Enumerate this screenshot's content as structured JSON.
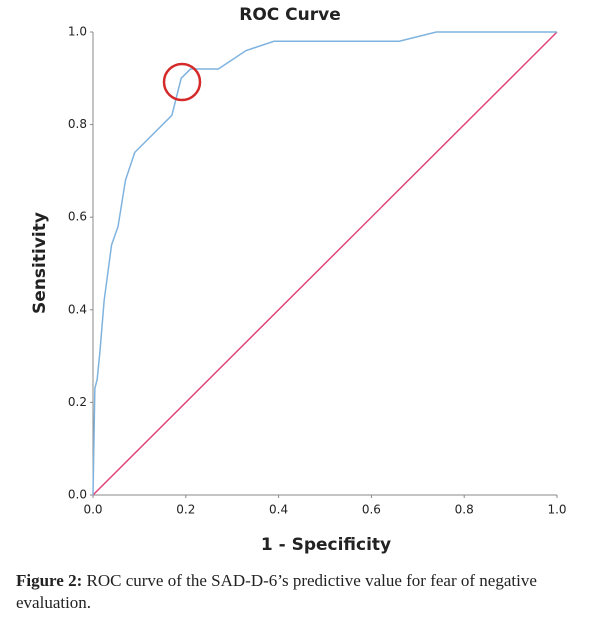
{
  "chart_data": {
    "type": "line",
    "title": "ROC Curve",
    "x_label": "1 - Specificity",
    "y_label": "Sensitivity",
    "xlim": [
      0,
      1
    ],
    "ylim": [
      0,
      1
    ],
    "xticks": [
      {
        "value": 0,
        "label": "0.0"
      },
      0.2,
      0.4,
      0.6,
      0.8,
      {
        "value": 1,
        "label": "1.0"
      }
    ],
    "yticks": [
      {
        "value": 0,
        "label": "0.0"
      },
      0.2,
      0.4,
      0.6,
      0.8,
      {
        "value": 1,
        "label": "1.0"
      }
    ],
    "grid": false,
    "series": [
      {
        "color": "#7fb3df",
        "x": [
          0,
          0.004,
          0.009,
          0.015,
          0.024,
          0.04,
          0.054,
          0.07,
          0.09,
          0.17,
          0.19,
          0.21,
          0.27,
          0.33,
          0.39,
          0.66,
          0.74,
          1
        ],
        "values": [
          0,
          0.23,
          0.25,
          0.31,
          0.42,
          0.54,
          0.58,
          0.68,
          0.74,
          0.82,
          0.9,
          0.92,
          0.92,
          0.96,
          0.98,
          0.98,
          1,
          1
        ]
      },
      {
        "color": "#e0457b",
        "x": [
          0,
          1
        ],
        "values": [
          0,
          1
        ]
      }
    ]
  },
  "caption": {
    "label": "Figure 2:",
    "text": " ROC curve of the SAD-D-6’s predictive value for fear of negative evaluation."
  }
}
